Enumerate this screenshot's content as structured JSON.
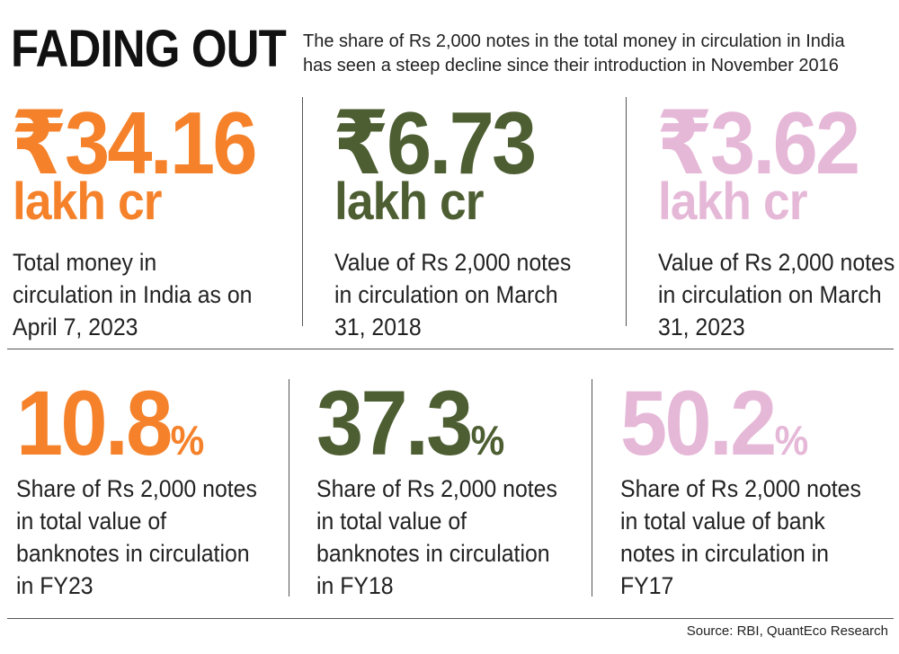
{
  "header": {
    "title": "FADING OUT",
    "subtitle": "The share of Rs 2,000 notes in the total money in circulation in India has seen a steep decline since their introduction in November 2016"
  },
  "colors": {
    "orange": "#f5822a",
    "green": "#4d5e32",
    "pink": "#e6b8d8"
  },
  "top_row": [
    {
      "value": "₹34.16",
      "unit": "lakh cr",
      "description": "Total money in circulation in India as on April 7, 2023"
    },
    {
      "value": "₹6.73",
      "unit": "lakh cr",
      "description": "Value of Rs 2,000 notes in circulation on March 31, 2018"
    },
    {
      "value": "₹3.62",
      "unit": "lakh cr",
      "description": "Value of Rs 2,000 notes in circulation on March 31, 2023"
    }
  ],
  "bottom_row": [
    {
      "value": "10.8",
      "suffix": "%",
      "description": "Share of Rs 2,000 notes in total value of banknotes in circulation in FY23"
    },
    {
      "value": "37.3",
      "suffix": "%",
      "description": "Share of Rs 2,000 notes in total value of banknotes in circulation in FY18"
    },
    {
      "value": "50.2",
      "suffix": "%",
      "description": "Share of Rs 2,000 notes in total value of bank notes in circulation in FY17"
    }
  ],
  "source": "Source: RBI, QuantEco Research"
}
